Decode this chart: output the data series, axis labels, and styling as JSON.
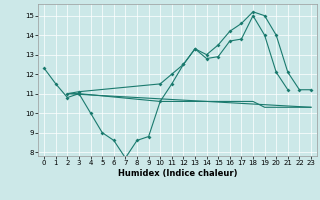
{
  "xlabel": "Humidex (Indice chaleur)",
  "xlim": [
    -0.5,
    23.5
  ],
  "ylim": [
    7.8,
    15.6
  ],
  "yticks": [
    8,
    9,
    10,
    11,
    12,
    13,
    14,
    15
  ],
  "xticks": [
    0,
    1,
    2,
    3,
    4,
    5,
    6,
    7,
    8,
    9,
    10,
    11,
    12,
    13,
    14,
    15,
    16,
    17,
    18,
    19,
    20,
    21,
    22,
    23
  ],
  "bg_color": "#cce8e8",
  "line_color": "#1a7a6e",
  "line1_x": [
    0,
    1,
    2,
    3,
    4,
    5,
    6,
    7,
    8,
    9,
    10,
    11,
    12,
    13,
    14,
    15,
    16,
    17,
    18,
    19,
    20,
    21
  ],
  "line1_y": [
    12.3,
    11.5,
    10.8,
    11.0,
    10.0,
    9.0,
    8.6,
    7.7,
    8.6,
    8.8,
    10.6,
    11.5,
    12.5,
    13.3,
    12.8,
    12.9,
    13.7,
    13.8,
    15.0,
    14.0,
    12.1,
    11.2
  ],
  "line2_x": [
    2,
    3,
    10,
    11,
    12,
    13,
    14,
    15,
    16,
    17,
    18,
    19,
    20,
    21,
    22,
    23
  ],
  "line2_y": [
    11.0,
    11.1,
    11.5,
    12.0,
    12.5,
    13.3,
    13.0,
    13.5,
    14.2,
    14.6,
    15.2,
    15.0,
    14.0,
    12.1,
    11.2,
    11.2
  ],
  "line3_x": [
    2,
    23
  ],
  "line3_y": [
    11.0,
    10.3
  ],
  "line4_x": [
    2,
    3,
    10,
    11,
    12,
    13,
    14,
    15,
    16,
    17,
    18,
    19,
    20,
    21,
    22,
    23
  ],
  "line4_y": [
    11.0,
    11.0,
    10.6,
    10.6,
    10.6,
    10.6,
    10.6,
    10.6,
    10.6,
    10.6,
    10.6,
    10.3,
    10.3,
    10.3,
    10.3,
    10.3
  ]
}
